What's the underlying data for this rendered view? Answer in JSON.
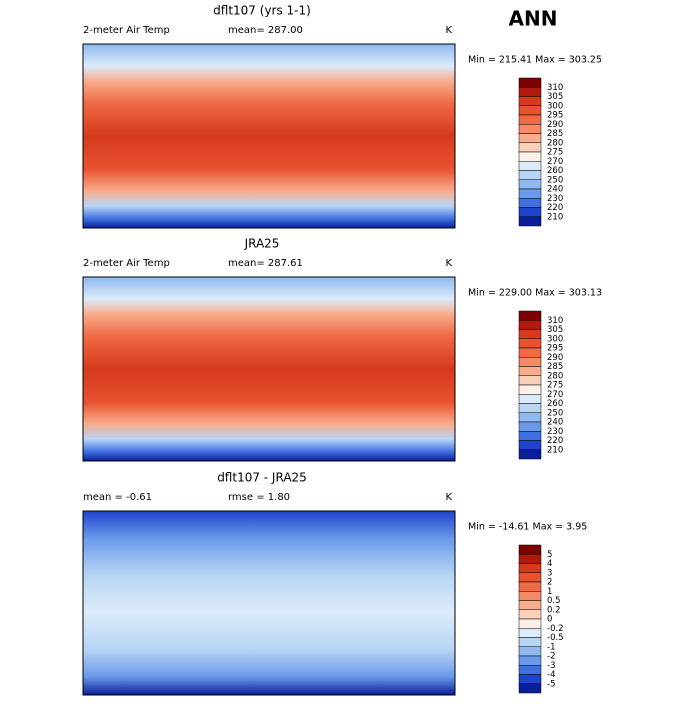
{
  "header": {
    "title": "ANN"
  },
  "panels": [
    {
      "title": "dflt107 (yrs 1-1)",
      "left_label": "2-meter Air Temp",
      "center_label": "mean= 287.00",
      "units": "K",
      "minmax": "Min = 215.41 Max = 303.25",
      "colorbar": {
        "labels": [
          "310",
          "305",
          "300",
          "295",
          "290",
          "285",
          "280",
          "275",
          "270",
          "260",
          "250",
          "240",
          "230",
          "220",
          "210"
        ],
        "colors": [
          "#7f0000",
          "#b01a0c",
          "#d63a1d",
          "#e8522e",
          "#ef6a45",
          "#f48a66",
          "#f8ad8e",
          "#fbd0b9",
          "#fdf0e6",
          "#dcebfa",
          "#b8d5f5",
          "#8fb9ef",
          "#6a9aea",
          "#3f70e0",
          "#1f44cc",
          "#0a1e9a"
        ]
      }
    },
    {
      "title": "JRA25",
      "left_label": "2-meter Air Temp",
      "center_label": "mean= 287.61",
      "units": "K",
      "minmax": "Min = 229.00 Max = 303.13",
      "colorbar": {
        "labels": [
          "310",
          "305",
          "300",
          "295",
          "290",
          "285",
          "280",
          "275",
          "270",
          "260",
          "250",
          "240",
          "230",
          "220",
          "210"
        ],
        "colors": [
          "#7f0000",
          "#b01a0c",
          "#d63a1d",
          "#e8522e",
          "#ef6a45",
          "#f48a66",
          "#f8ad8e",
          "#fbd0b9",
          "#fdf0e6",
          "#dcebfa",
          "#b8d5f5",
          "#8fb9ef",
          "#6a9aea",
          "#3f70e0",
          "#1f44cc",
          "#0a1e9a"
        ]
      }
    },
    {
      "title": "dflt107 - JRA25",
      "left_label": "mean =  -0.61",
      "center_label": "rmse =   1.80",
      "units": "K",
      "minmax": "Min = -14.61 Max =   3.95",
      "colorbar": {
        "labels": [
          "5",
          "4",
          "3",
          "2",
          "1",
          "0.5",
          "0.2",
          "0",
          "-0.2",
          "-0.5",
          "-1",
          "-2",
          "-3",
          "-4",
          "-5"
        ],
        "colors": [
          "#7f0000",
          "#b01a0c",
          "#d63a1d",
          "#e8522e",
          "#ef6a45",
          "#f48a66",
          "#f8ad8e",
          "#fbd0b9",
          "#fdf0e6",
          "#dcebfa",
          "#b8d5f5",
          "#8fb9ef",
          "#6a9aea",
          "#3f70e0",
          "#1f44cc",
          "#0a1e9a"
        ]
      }
    }
  ]
}
